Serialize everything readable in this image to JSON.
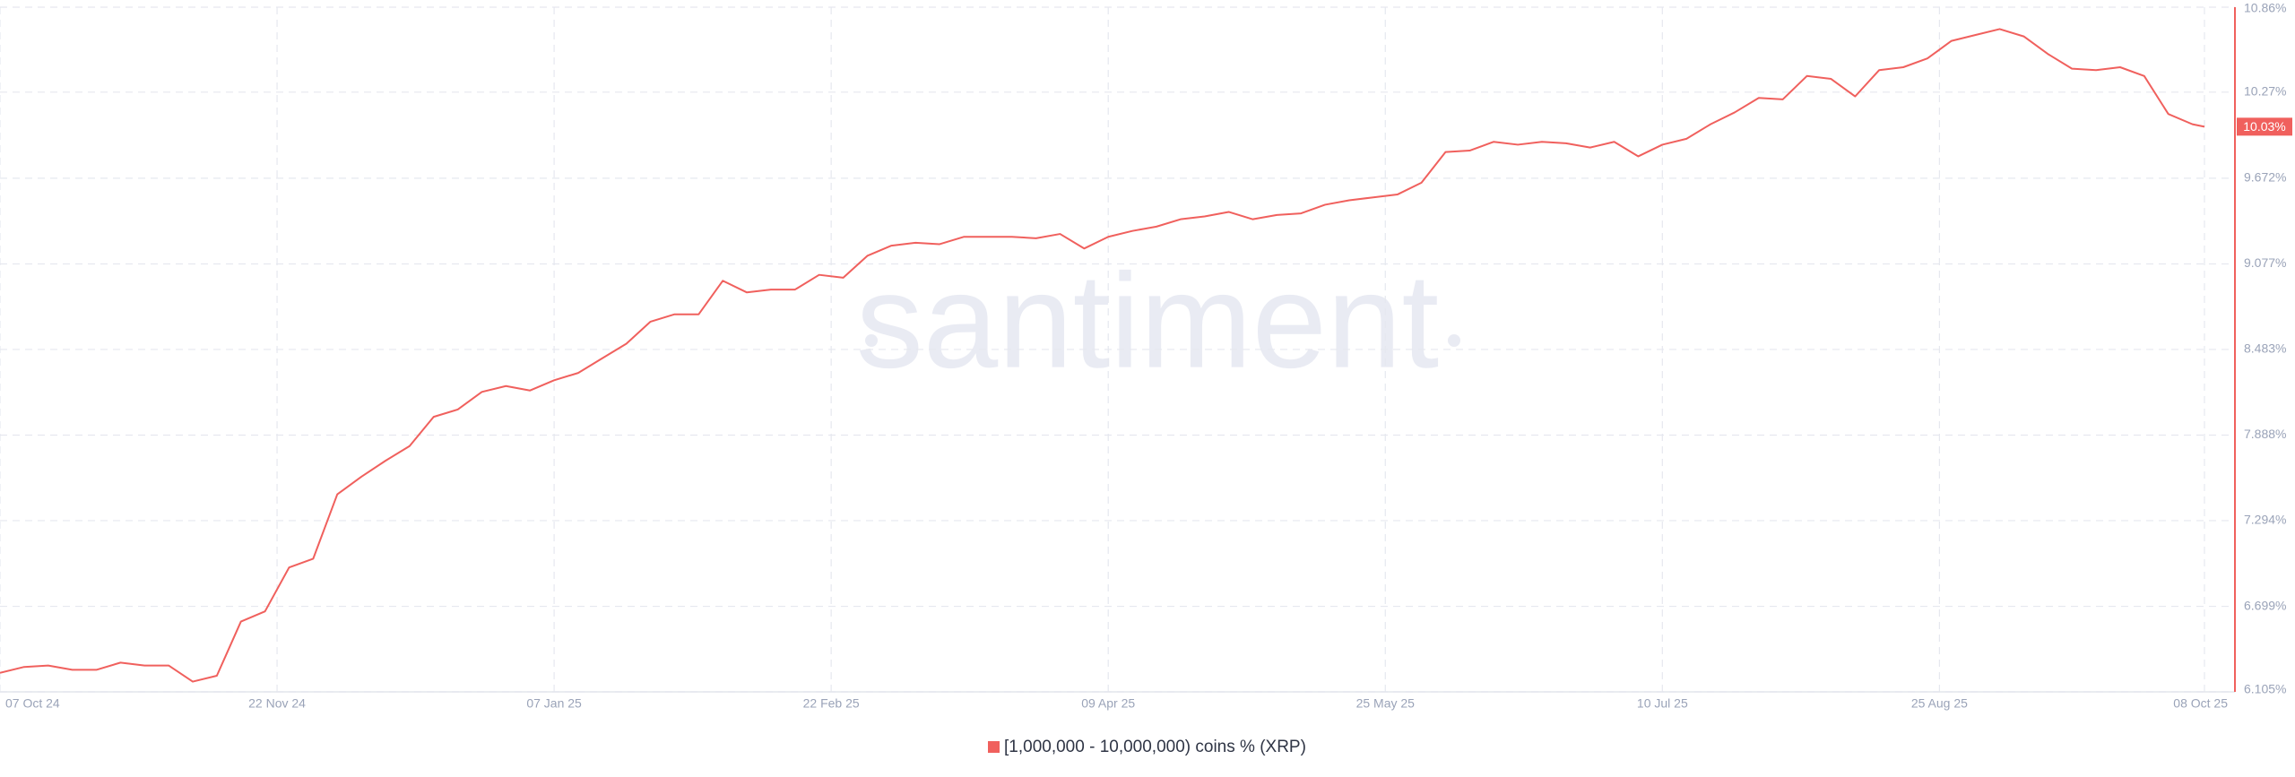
{
  "chart_data": {
    "type": "line",
    "watermark": "santiment",
    "x": [
      "2024-10-07",
      "2024-10-11",
      "2024-10-15",
      "2024-10-19",
      "2024-10-23",
      "2024-10-27",
      "2024-10-31",
      "2024-11-04",
      "2024-11-08",
      "2024-11-12",
      "2024-11-16",
      "2024-11-20",
      "2024-11-24",
      "2024-11-28",
      "2024-12-02",
      "2024-12-06",
      "2024-12-10",
      "2024-12-14",
      "2024-12-18",
      "2024-12-22",
      "2024-12-26",
      "2024-12-30",
      "2025-01-03",
      "2025-01-07",
      "2025-01-11",
      "2025-01-15",
      "2025-01-19",
      "2025-01-23",
      "2025-01-27",
      "2025-01-31",
      "2025-02-04",
      "2025-02-08",
      "2025-02-12",
      "2025-02-16",
      "2025-02-20",
      "2025-02-24",
      "2025-02-28",
      "2025-03-04",
      "2025-03-08",
      "2025-03-12",
      "2025-03-16",
      "2025-03-20",
      "2025-03-24",
      "2025-03-28",
      "2025-04-01",
      "2025-04-05",
      "2025-04-09",
      "2025-04-13",
      "2025-04-17",
      "2025-04-21",
      "2025-04-25",
      "2025-04-29",
      "2025-05-03",
      "2025-05-07",
      "2025-05-11",
      "2025-05-15",
      "2025-05-19",
      "2025-05-23",
      "2025-05-27",
      "2025-05-31",
      "2025-06-04",
      "2025-06-08",
      "2025-06-12",
      "2025-06-16",
      "2025-06-20",
      "2025-06-24",
      "2025-06-28",
      "2025-07-02",
      "2025-07-06",
      "2025-07-10",
      "2025-07-14",
      "2025-07-18",
      "2025-07-22",
      "2025-07-26",
      "2025-07-30",
      "2025-08-03",
      "2025-08-07",
      "2025-08-11",
      "2025-08-15",
      "2025-08-19",
      "2025-08-23",
      "2025-08-27",
      "2025-08-31",
      "2025-09-04",
      "2025-09-08",
      "2025-09-12",
      "2025-09-16",
      "2025-09-20",
      "2025-09-24",
      "2025-09-28",
      "2025-10-02",
      "2025-10-06",
      "2025-10-08"
    ],
    "series": [
      {
        "name": "[1,000,000 - 10,000,000) coins % (XRP)",
        "color": "#f0605d",
        "values": [
          6.237,
          6.278,
          6.288,
          6.258,
          6.258,
          6.308,
          6.288,
          6.288,
          6.176,
          6.217,
          6.593,
          6.664,
          6.969,
          7.03,
          7.477,
          7.599,
          7.71,
          7.812,
          8.015,
          8.066,
          8.188,
          8.229,
          8.198,
          8.269,
          8.32,
          8.422,
          8.523,
          8.676,
          8.727,
          8.727,
          8.96,
          8.879,
          8.899,
          8.899,
          9.001,
          8.981,
          9.133,
          9.204,
          9.224,
          9.214,
          9.265,
          9.265,
          9.265,
          9.255,
          9.285,
          9.184,
          9.265,
          9.306,
          9.336,
          9.387,
          9.407,
          9.438,
          9.387,
          9.417,
          9.428,
          9.488,
          9.519,
          9.539,
          9.559,
          9.641,
          9.854,
          9.864,
          9.925,
          9.905,
          9.925,
          9.915,
          9.885,
          9.925,
          9.824,
          9.905,
          9.946,
          10.047,
          10.129,
          10.23,
          10.22,
          10.382,
          10.362,
          10.24,
          10.423,
          10.443,
          10.504,
          10.626,
          10.667,
          10.708,
          10.657,
          10.535,
          10.433,
          10.423,
          10.443,
          10.382,
          10.118,
          10.047,
          10.03
        ]
      }
    ],
    "last_value": {
      "value": 10.03,
      "label": "10.03%"
    },
    "xlim": [
      "2024-10-07",
      "2025-10-08"
    ],
    "xticks": [
      {
        "value": "2024-10-07",
        "label": "07 Oct 24"
      },
      {
        "value": "2024-11-22",
        "label": "22 Nov 24"
      },
      {
        "value": "2025-01-07",
        "label": "07 Jan 25"
      },
      {
        "value": "2025-02-22",
        "label": "22 Feb 25"
      },
      {
        "value": "2025-04-09",
        "label": "09 Apr 25"
      },
      {
        "value": "2025-05-25",
        "label": "25 May 25"
      },
      {
        "value": "2025-07-10",
        "label": "10 Jul 25"
      },
      {
        "value": "2025-08-25",
        "label": "25 Aug 25"
      },
      {
        "value": "2025-10-08",
        "label": "08 Oct 25"
      }
    ],
    "ylim": [
      6.105,
      10.86
    ],
    "yticks": [
      {
        "value": 10.86,
        "label": "10.86%"
      },
      {
        "value": 10.27,
        "label": "10.27%"
      },
      {
        "value": 9.672,
        "label": "9.672%"
      },
      {
        "value": 9.077,
        "label": "9.077%"
      },
      {
        "value": 8.483,
        "label": "8.483%"
      },
      {
        "value": 7.888,
        "label": "7.888%"
      },
      {
        "value": 7.294,
        "label": "7.294%"
      },
      {
        "value": 6.699,
        "label": "6.699%"
      },
      {
        "value": 6.105,
        "label": "6.105%"
      }
    ],
    "grid": true
  }
}
